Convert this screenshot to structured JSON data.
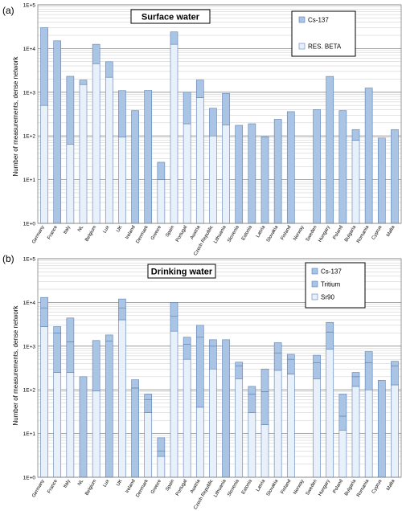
{
  "chart_data": [
    {
      "type": "bar",
      "stacked": true,
      "log_scale": true,
      "panel_label": "(a)",
      "title": "Surface water",
      "ylabel": "Number of measurements, dense network",
      "ylim": [
        1,
        100000
      ],
      "yticks": [
        "1E+0",
        "1E+1",
        "1E+2",
        "1E+3",
        "1E+4",
        "1E+5"
      ],
      "grid": true,
      "legend_position": "top-right",
      "categories": [
        "Germany",
        "France",
        "Italy",
        "NL",
        "Belgium",
        "Lux",
        "UK",
        "Ireland",
        "Denmark",
        "Greece",
        "Spain",
        "Portugal",
        "Austria",
        "Czech Republic",
        "Lithuania",
        "Slovenia",
        "Estonia",
        "Latvia",
        "Slovakia",
        "Finland",
        "Norway",
        "Sweden",
        "Hungary",
        "Poland",
        "Bulgaria",
        "Romania",
        "Cyprus",
        "Malta"
      ],
      "series": [
        {
          "name": "RES. BETA",
          "color": "#e8f1fb",
          "values": [
            500,
            0,
            65,
            1500,
            4500,
            2200,
            95,
            0,
            0,
            10,
            12500,
            190,
            750,
            100,
            180,
            0,
            0,
            0,
            0,
            0,
            0,
            0,
            0,
            0,
            80,
            0,
            0,
            0
          ]
        },
        {
          "name": "Cs-137",
          "color": "#a9c4e4",
          "values": [
            29500,
            15000,
            2250,
            400,
            8000,
            2800,
            995,
            380,
            1100,
            15,
            11500,
            810,
            1150,
            330,
            760,
            175,
            190,
            95,
            240,
            360,
            0,
            400,
            2300,
            380,
            60,
            1250,
            90,
            140
          ]
        }
      ]
    },
    {
      "type": "bar",
      "stacked": true,
      "log_scale": true,
      "panel_label": "(b)",
      "title": "Drinking water",
      "ylabel": "Number of measurements, dense network",
      "ylim": [
        1,
        100000
      ],
      "yticks": [
        "1E+0",
        "1E+1",
        "1E+2",
        "1E+3",
        "1E+4",
        "1E+5"
      ],
      "grid": true,
      "legend_position": "top-right",
      "categories": [
        "Germany",
        "France",
        "Italy",
        "NL",
        "Belgium",
        "Lux",
        "UK",
        "Ireland",
        "Denmark",
        "Greece",
        "Spain",
        "Portugal",
        "Austria",
        "Czech Republic",
        "Lithuania",
        "Slovenia",
        "Estonia",
        "Latvia",
        "Slovakia",
        "Finland",
        "Norway",
        "Sweden",
        "Hungary",
        "Poland",
        "Bulgaria",
        "Romania",
        "Cyprus",
        "Malta"
      ],
      "series": [
        {
          "name": "Sr90",
          "color": "#e8f1fb",
          "values": [
            2800,
            250,
            250,
            0,
            95,
            0,
            4000,
            0,
            30,
            3,
            2200,
            500,
            40,
            300,
            0,
            180,
            30,
            16,
            280,
            230,
            0,
            180,
            850,
            12,
            120,
            100,
            0,
            130
          ]
        },
        {
          "name": "Tritium",
          "color": "#a9c4e4",
          "values": [
            4700,
            1750,
            1000,
            0,
            1250,
            1300,
            3500,
            110,
            30,
            1,
            2600,
            600,
            1560,
            700,
            0,
            170,
            50,
            75,
            420,
            270,
            0,
            240,
            1250,
            13,
            80,
            320,
            0,
            220
          ]
        },
        {
          "name": "Cs-137",
          "color": "#a9c4e4",
          "values": [
            5500,
            800,
            3150,
            200,
            0,
            500,
            4500,
            60,
            20,
            4,
            5200,
            500,
            1400,
            400,
            1400,
            80,
            40,
            209,
            500,
            150,
            0,
            200,
            1400,
            55,
            50,
            330,
            165,
            100
          ]
        }
      ]
    }
  ]
}
